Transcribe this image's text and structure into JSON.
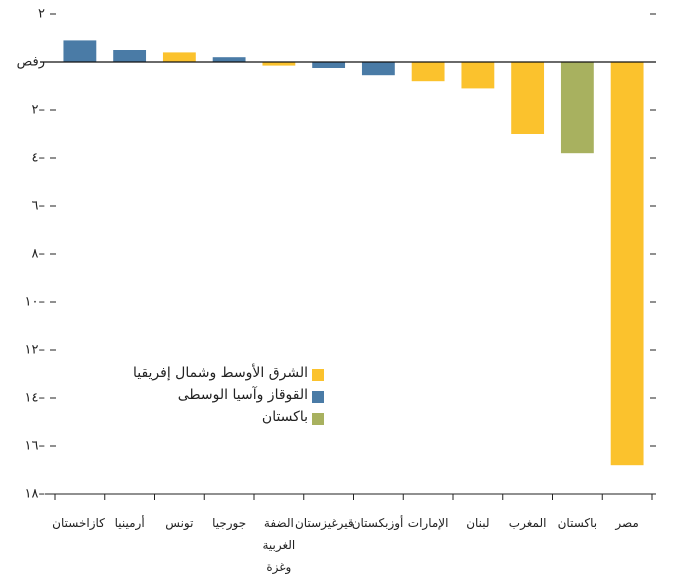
{
  "chart_data": {
    "type": "bar",
    "categories": [
      "كازاخستان",
      "أرمينيا",
      "تونس",
      "جورجيا",
      "الضفة الغربية وغزة",
      "قيرغيزستان",
      "أوزبكستان",
      "الإمارات",
      "لبنان",
      "المغرب",
      "باكستان",
      "مصر"
    ],
    "series": [
      {
        "name": "الشرق الأوسط وشمال إفريقيا",
        "color": "#fbc22d",
        "values": [
          null,
          null,
          0.4,
          null,
          -0.15,
          null,
          null,
          -0.8,
          -1.1,
          -3.0,
          null,
          -16.8
        ]
      },
      {
        "name": "القوقاز وآسيا الوسطى",
        "color": "#4a7ba6",
        "values": [
          0.9,
          0.5,
          null,
          0.2,
          null,
          -0.25,
          -0.55,
          null,
          null,
          null,
          null,
          null
        ]
      },
      {
        "name": "باكستان",
        "color": "#a8b15f",
        "values": [
          null,
          null,
          null,
          null,
          null,
          null,
          null,
          null,
          null,
          null,
          -3.8,
          null
        ]
      }
    ],
    "ylim": [
      -18,
      2
    ],
    "yticks": [
      {
        "value": 2,
        "label": "٢"
      },
      {
        "value": 0,
        "label": "صفر"
      },
      {
        "value": -2,
        "label": "٢–"
      },
      {
        "value": -4,
        "label": "٤–"
      },
      {
        "value": -6,
        "label": "٦–"
      },
      {
        "value": -8,
        "label": "٨–"
      },
      {
        "value": -10,
        "label": "١٠–"
      },
      {
        "value": -12,
        "label": "١٢–"
      },
      {
        "value": -14,
        "label": "١٤–"
      },
      {
        "value": -16,
        "label": "١٦–"
      },
      {
        "value": -18,
        "label": "١٨–"
      }
    ]
  }
}
